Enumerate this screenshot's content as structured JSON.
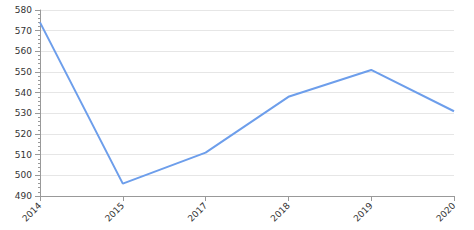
{
  "chart_data": {
    "type": "line",
    "categories": [
      "2014",
      "2015",
      "2017",
      "2018",
      "2019",
      "2020"
    ],
    "values": [
      574,
      496,
      511,
      538,
      551,
      531
    ],
    "color": "#6d9eeb",
    "ylim": [
      490,
      580
    ],
    "yticks": [
      490,
      500,
      510,
      520,
      530,
      540,
      550,
      560,
      570,
      580
    ],
    "grid": true
  }
}
